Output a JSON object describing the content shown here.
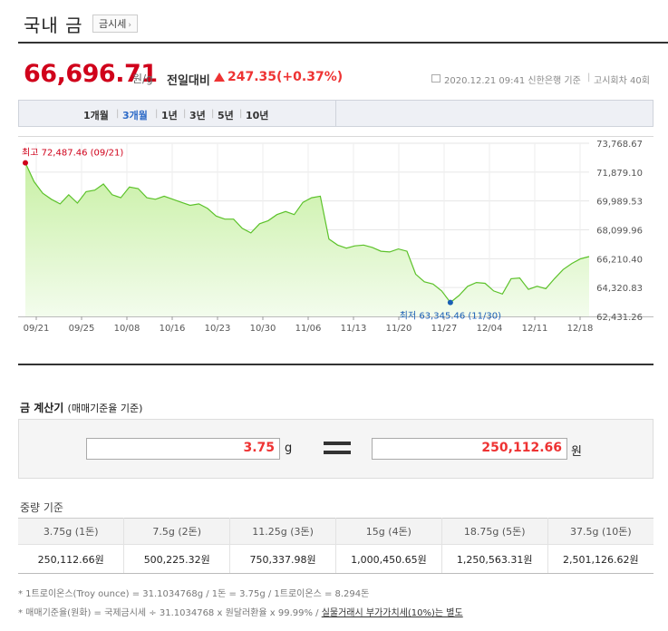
{
  "header": {
    "title": "국내 금",
    "quote_button": "금시세"
  },
  "price": {
    "value": "66,696.71",
    "unit": "원/g",
    "change_label": "전일대비",
    "change_value": "247.35(+0.37%)",
    "change_direction": "up",
    "meta_date": "2020.12.21 09:41 신한은행 기준",
    "meta_sep": "|",
    "meta_round": "고시회차 40회"
  },
  "tabs": [
    {
      "label": "1개월",
      "active": false
    },
    {
      "label": "3개월",
      "active": true
    },
    {
      "label": "1년",
      "active": false
    },
    {
      "label": "3년",
      "active": false
    },
    {
      "label": "5년",
      "active": false
    },
    {
      "label": "10년",
      "active": false
    }
  ],
  "chart_data": {
    "type": "area",
    "title": "",
    "xlabel": "",
    "ylabel": "",
    "ylim": [
      62431.26,
      73768.67
    ],
    "y_ticks": [
      "73,768.67",
      "71,879.10",
      "69,989.53",
      "68,099.96",
      "66,210.40",
      "64,320.83",
      "62,431.26"
    ],
    "x_ticks": [
      "09/21",
      "09/25",
      "10/08",
      "10/16",
      "10/23",
      "10/30",
      "11/06",
      "11/13",
      "11/20",
      "11/27",
      "12/04",
      "12/11",
      "12/18"
    ],
    "max_label": "최고 72,487.46 (09/21)",
    "min_label": "최저 63,345.46 (11/30)",
    "grid": true,
    "colors": {
      "line": "#5cc22a",
      "fill_top": "#c8f0a4",
      "fill_bottom": "#f3fced",
      "max": "#d0021b",
      "min": "#1a5fb4"
    },
    "values": [
      72487.46,
      71250,
      70500,
      70100,
      69800,
      70400,
      69850,
      70600,
      70700,
      71100,
      70400,
      70200,
      70900,
      70800,
      70200,
      70100,
      70300,
      70100,
      69900,
      69700,
      69800,
      69500,
      69000,
      68800,
      68800,
      68200,
      67900,
      68500,
      68700,
      69100,
      69300,
      69100,
      69900,
      70200,
      70300,
      67500,
      67100,
      66900,
      67050,
      67100,
      66950,
      66700,
      66650,
      66850,
      66700,
      65200,
      64700,
      64550,
      64100,
      63345.46,
      63800,
      64400,
      64650,
      64600,
      64100,
      63900,
      64900,
      64950,
      64200,
      64400,
      64250,
      64900,
      65500,
      65900,
      66200,
      66350
    ]
  },
  "calculator": {
    "title": "금 계산기",
    "subtitle": "(매매기준율 기준)",
    "input_value": "3.75",
    "input_unit": "g",
    "output_value": "250,112.66",
    "output_unit": "원"
  },
  "weights": {
    "title": "중량 기준",
    "headers": [
      "3.75g (1돈)",
      "7.5g (2돈)",
      "11.25g (3돈)",
      "15g (4돈)",
      "18.75g (5돈)",
      "37.5g (10돈)"
    ],
    "values": [
      "250,112.66원",
      "500,225.32원",
      "750,337.98원",
      "1,000,450.65원",
      "1,250,563.31원",
      "2,501,126.62원"
    ]
  },
  "notes": {
    "line1": "* 1트로이온스(Troy ounce) = 31.1034768g / 1돈 = 3.75g / 1트로이온스 = 8.294돈",
    "line2_prefix": "* 매매기준율(원화) = 국제금시세 ÷ 31.1034768 x 원달러환율 x 99.99% / ",
    "line2_emphasis": "실물거래시 부가가치세(10%)는 별도"
  }
}
